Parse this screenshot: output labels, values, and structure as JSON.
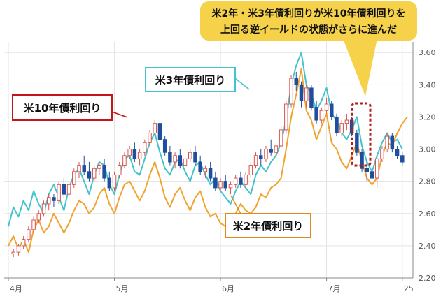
{
  "chart_data": {
    "type": "candlestick+line",
    "grid": true,
    "ylim": [
      2.2,
      3.64
    ],
    "yticks": [
      "3.60",
      "3.40",
      "3.20",
      "3.00",
      "2.80",
      "2.60",
      "2.40",
      "2.20"
    ],
    "xticks": [
      {
        "label": "4月",
        "index": 0
      },
      {
        "label": "5月",
        "index": 21
      },
      {
        "label": "6月",
        "index": 42
      },
      {
        "label": "7月",
        "index": 63
      },
      {
        "label": "25",
        "index": 78
      }
    ],
    "n_days": 80,
    "candles_start": 1,
    "candles": {
      "name": "米10年債利回り",
      "ohlc": [
        [
          2.35,
          2.38,
          2.33,
          2.36
        ],
        [
          2.36,
          2.41,
          2.34,
          2.4
        ],
        [
          2.4,
          2.46,
          2.38,
          2.44
        ],
        [
          2.44,
          2.52,
          2.42,
          2.5
        ],
        [
          2.5,
          2.58,
          2.48,
          2.56
        ],
        [
          2.56,
          2.62,
          2.54,
          2.6
        ],
        [
          2.6,
          2.68,
          2.58,
          2.66
        ],
        [
          2.66,
          2.72,
          2.62,
          2.7
        ],
        [
          2.7,
          2.72,
          2.64,
          2.68
        ],
        [
          2.68,
          2.8,
          2.66,
          2.78
        ],
        [
          2.78,
          2.82,
          2.7,
          2.72
        ],
        [
          2.72,
          2.8,
          2.68,
          2.78
        ],
        [
          2.78,
          2.88,
          2.76,
          2.86
        ],
        [
          2.86,
          2.92,
          2.82,
          2.9
        ],
        [
          2.9,
          2.96,
          2.84,
          2.86
        ],
        [
          2.86,
          2.92,
          2.8,
          2.82
        ],
        [
          2.82,
          2.9,
          2.8,
          2.88
        ],
        [
          2.88,
          2.92,
          2.84,
          2.9
        ],
        [
          2.9,
          2.94,
          2.8,
          2.82
        ],
        [
          2.82,
          2.86,
          2.74,
          2.76
        ],
        [
          2.76,
          2.86,
          2.74,
          2.84
        ],
        [
          2.84,
          2.92,
          2.82,
          2.9
        ],
        [
          2.9,
          2.98,
          2.88,
          2.96
        ],
        [
          2.96,
          3.02,
          2.94,
          3.0
        ],
        [
          3.0,
          3.04,
          2.92,
          2.94
        ],
        [
          2.94,
          3.0,
          2.9,
          2.98
        ],
        [
          2.98,
          3.06,
          2.96,
          3.04
        ],
        [
          3.04,
          3.12,
          3.02,
          3.1
        ],
        [
          3.1,
          3.18,
          3.08,
          3.16
        ],
        [
          3.16,
          3.18,
          3.04,
          3.06
        ],
        [
          3.06,
          3.08,
          2.96,
          2.98
        ],
        [
          2.98,
          3.02,
          2.9,
          2.92
        ],
        [
          2.92,
          2.98,
          2.88,
          2.96
        ],
        [
          2.96,
          3.0,
          2.88,
          2.9
        ],
        [
          2.9,
          2.96,
          2.86,
          2.94
        ],
        [
          2.94,
          3.0,
          2.92,
          2.98
        ],
        [
          2.98,
          3.02,
          2.9,
          2.92
        ],
        [
          2.92,
          2.96,
          2.84,
          2.86
        ],
        [
          2.86,
          2.9,
          2.82,
          2.88
        ],
        [
          2.88,
          2.92,
          2.8,
          2.82
        ],
        [
          2.82,
          2.86,
          2.74,
          2.76
        ],
        [
          2.76,
          2.82,
          2.74,
          2.8
        ],
        [
          2.8,
          2.84,
          2.74,
          2.76
        ],
        [
          2.76,
          2.8,
          2.72,
          2.78
        ],
        [
          2.78,
          2.84,
          2.76,
          2.82
        ],
        [
          2.82,
          2.86,
          2.76,
          2.78
        ],
        [
          2.78,
          2.86,
          2.76,
          2.84
        ],
        [
          2.84,
          2.92,
          2.82,
          2.9
        ],
        [
          2.9,
          2.98,
          2.88,
          2.96
        ],
        [
          2.96,
          3.0,
          2.9,
          2.94
        ],
        [
          2.94,
          3.02,
          2.92,
          3.0
        ],
        [
          3.0,
          3.06,
          2.96,
          2.98
        ],
        [
          2.98,
          3.04,
          2.96,
          3.02
        ],
        [
          3.02,
          3.14,
          3.0,
          3.12
        ],
        [
          3.12,
          3.3,
          3.1,
          3.28
        ],
        [
          3.28,
          3.46,
          3.26,
          3.44
        ],
        [
          3.44,
          3.48,
          3.36,
          3.4
        ],
        [
          3.4,
          3.42,
          3.26,
          3.3
        ],
        [
          3.3,
          3.4,
          3.26,
          3.38
        ],
        [
          3.38,
          3.4,
          3.24,
          3.26
        ],
        [
          3.26,
          3.3,
          3.16,
          3.18
        ],
        [
          3.18,
          3.26,
          3.16,
          3.24
        ],
        [
          3.24,
          3.32,
          3.22,
          3.28
        ],
        [
          3.28,
          3.3,
          3.18,
          3.2
        ],
        [
          3.2,
          3.22,
          3.08,
          3.1
        ],
        [
          3.1,
          3.18,
          3.08,
          3.16
        ],
        [
          3.16,
          3.22,
          3.12,
          3.18
        ],
        [
          3.18,
          3.2,
          3.08,
          3.1
        ],
        [
          3.1,
          3.12,
          2.96,
          2.98
        ],
        [
          2.98,
          3.0,
          2.86,
          2.88
        ],
        [
          2.88,
          2.94,
          2.8,
          2.86
        ],
        [
          2.86,
          2.9,
          2.78,
          2.82
        ],
        [
          2.82,
          2.96,
          2.76,
          2.94
        ],
        [
          2.94,
          3.02,
          2.92,
          3.0
        ],
        [
          3.0,
          3.1,
          2.98,
          3.08
        ],
        [
          3.08,
          3.1,
          2.98,
          3.0
        ],
        [
          3.0,
          3.02,
          2.94,
          2.96
        ],
        [
          2.96,
          2.98,
          2.9,
          2.92
        ]
      ],
      "colors": {
        "up": "#d9534f",
        "down": "#1f4e9c"
      }
    },
    "series": [
      {
        "name": "米3年債利回り",
        "color": "#45c3cc",
        "values": [
          2.52,
          2.64,
          2.58,
          2.68,
          2.62,
          2.74,
          2.66,
          2.6,
          2.72,
          2.78,
          2.7,
          2.62,
          2.76,
          2.84,
          2.88,
          2.8,
          2.72,
          2.84,
          2.92,
          2.9,
          2.78,
          2.72,
          2.84,
          2.94,
          2.96,
          2.86,
          2.84,
          2.94,
          3.04,
          3.1,
          2.98,
          2.88,
          2.84,
          2.92,
          2.94,
          2.86,
          2.8,
          2.9,
          2.92,
          2.84,
          2.78,
          2.82,
          2.74,
          2.7,
          2.66,
          2.74,
          2.8,
          2.76,
          2.72,
          2.84,
          2.9,
          2.86,
          2.92,
          2.96,
          3.04,
          3.18,
          3.4,
          3.52,
          3.6,
          3.4,
          3.34,
          3.24,
          3.3,
          3.38,
          3.22,
          3.18,
          3.1,
          3.06,
          3.12,
          3.2,
          3.02,
          2.92,
          2.86,
          2.96,
          3.04,
          3.1,
          3.04,
          3.06,
          3.0
        ]
      },
      {
        "name": "米2年債利回り",
        "color": "#f0a32f",
        "values": [
          2.4,
          2.46,
          2.38,
          2.44,
          2.36,
          2.5,
          2.56,
          2.48,
          2.52,
          2.6,
          2.54,
          2.48,
          2.54,
          2.62,
          2.68,
          2.66,
          2.6,
          2.64,
          2.72,
          2.76,
          2.66,
          2.6,
          2.7,
          2.78,
          2.8,
          2.74,
          2.68,
          2.74,
          2.84,
          2.92,
          2.82,
          2.7,
          2.64,
          2.72,
          2.76,
          2.68,
          2.62,
          2.7,
          2.74,
          2.64,
          2.58,
          2.6,
          2.54,
          2.52,
          2.54,
          2.6,
          2.66,
          2.62,
          2.6,
          2.64,
          2.72,
          2.7,
          2.76,
          2.78,
          2.82,
          3.0,
          3.2,
          3.34,
          3.5,
          3.24,
          3.18,
          3.06,
          3.14,
          3.22,
          3.04,
          3.0,
          2.92,
          2.88,
          2.96,
          3.04,
          2.92,
          2.82,
          2.78,
          2.82,
          2.96,
          3.04,
          3.02,
          3.1,
          3.16,
          3.2
        ]
      }
    ],
    "annotations": {
      "callout_top": [
        "米2年・米3年債利回りが米10年債利回りを",
        "上回る逆イールドの状態がさらに進んだ"
      ],
      "label_10y": "米10年債利回り",
      "label_3y": "米3年債利回り",
      "label_2y": "米2年債利回り"
    },
    "colors": {
      "callout_fill": "#f6d24a",
      "label_10y_border": "#c0161c",
      "label_3y_border": "#45c3cc",
      "label_2y_border": "#e08a1c",
      "highlight_box": "#b31d1d",
      "grid": "#e3e3e3",
      "axis": "#888888"
    }
  }
}
